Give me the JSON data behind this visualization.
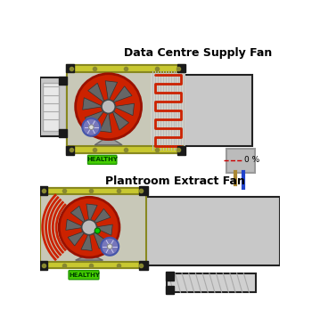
{
  "title1": "Data Centre Supply Fan",
  "title2": "Plantroom Extract Fan",
  "healthy_text": "HEALTHY",
  "healthy_color": "#44cc00",
  "bg_color": "#ffffff",
  "duct_fill": "#c8c8c8",
  "duct_edge": "#222222",
  "box_fill": "#c8c8b8",
  "box_bar": "#c8c830",
  "box_bar_edge": "#888820",
  "fan_red": "#cc2200",
  "fan_edge": "#991100",
  "blade_color": "#666666",
  "blade_edge": "#333333",
  "hub_fill": "#bbbbbb",
  "hub_edge": "#444444",
  "motor_fill": "#7777bb",
  "motor_edge": "#4455aa",
  "coil_red": "#cc2200",
  "grid_color": "#bbbbbb",
  "sensor_fill": "#bbbbbb",
  "sensor_edge": "#999999",
  "stem_gold": "#aa8833",
  "stem_blue": "#2244cc",
  "healthy_edge": "#229900",
  "healthy_text_color": "#004400",
  "black_conn": "#1a1a1a",
  "tri_fill": "#999999",
  "tri_edge": "#666666",
  "percent_text": "0 %",
  "dashed_red": "#cc0000",
  "vent_fill": "#d0d0d0",
  "vent_lines": "#aaaaaa",
  "filter_fill": "#e8e8e8",
  "filter_line": "#aaaaaa"
}
